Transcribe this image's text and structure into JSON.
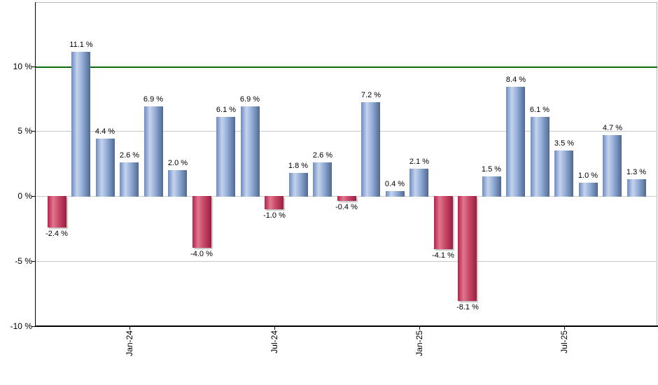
{
  "chart_data": {
    "type": "bar",
    "title": "",
    "xlabel": "",
    "ylabel": "",
    "values": [
      -2.4,
      11.1,
      4.4,
      2.6,
      6.9,
      2.0,
      -4.0,
      6.1,
      6.9,
      -1.0,
      1.8,
      2.6,
      -0.4,
      7.2,
      0.4,
      2.1,
      -4.1,
      -8.1,
      1.5,
      8.4,
      6.1,
      3.5,
      1.0,
      4.7,
      1.3
    ],
    "value_suffix": " %",
    "x_ticks": [
      {
        "bar_index": 3,
        "label": "Jan-24"
      },
      {
        "bar_index": 9,
        "label": "Jul-24"
      },
      {
        "bar_index": 15,
        "label": "Jan-25"
      },
      {
        "bar_index": 21,
        "label": "Jul-25"
      }
    ],
    "y_ticks": [
      {
        "value": 10,
        "label": "10 %"
      },
      {
        "value": 5,
        "label": "5 %"
      },
      {
        "value": 0,
        "label": "0 %"
      },
      {
        "value": -5,
        "label": "-5 %"
      },
      {
        "value": -10,
        "label": "-10 %"
      }
    ],
    "ylim": [
      -10,
      14.9
    ],
    "reference_line": {
      "value": 10
    },
    "grid": "horizontal",
    "legend": "none"
  },
  "colors": {
    "background": "#ffffff",
    "positive_bar_gradient": [
      "#6b8cc4",
      "#c6d3ec",
      "#92aed9",
      "#50688f"
    ],
    "negative_bar_gradient": [
      "#b5244c",
      "#e0768f",
      "#c84a6a",
      "#9c1f3f"
    ],
    "reference_line": "#0b6b0b",
    "grid_line": "#c9c9c9",
    "axis_line": "#000000",
    "frame_line": "#b9b9b9",
    "label_text": "#000000"
  }
}
